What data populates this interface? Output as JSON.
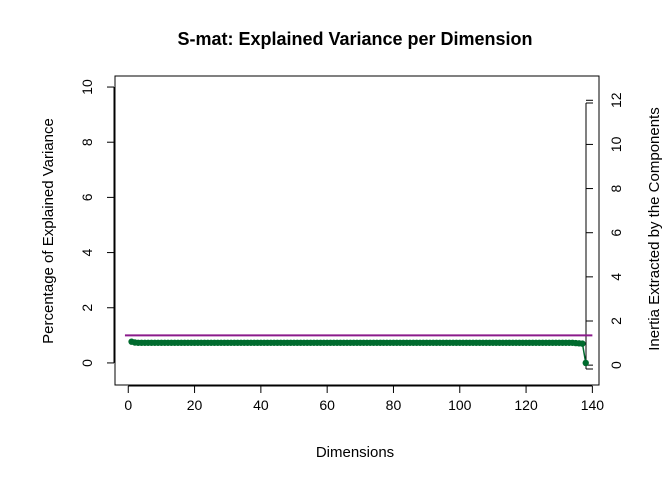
{
  "chart_data": {
    "type": "line",
    "title": "S-mat: Explained Variance per Dimension",
    "xlabel": "Dimensions",
    "ylabel": "Percentage of Explained Variance",
    "ylabel_right": "Inertia Extracted by the Components",
    "xlim": [
      -4,
      142
    ],
    "ylim": [
      -0.8,
      10.4
    ],
    "ylim_right": [
      -0.9,
      13.1
    ],
    "x_ticks": [
      "0",
      "20",
      "40",
      "60",
      "80",
      "120",
      "100",
      "140"
    ],
    "x_tick_values": [
      0,
      20,
      40,
      60,
      80,
      120,
      100,
      140
    ],
    "y_ticks": [
      "0",
      "2",
      "4",
      "6",
      "8",
      "10"
    ],
    "y_tick_values": [
      0,
      2,
      4,
      6,
      8,
      10
    ],
    "y_right_ticks": [
      "0",
      "2",
      "4",
      "6",
      "8",
      "10",
      "12"
    ],
    "y_right_tick_values": [
      0,
      2,
      4,
      6,
      8,
      10,
      12
    ],
    "reference_line": {
      "y": 1.0,
      "color": "#8b1a8b"
    },
    "line_color": "#006b2e",
    "grid": false,
    "series": [
      {
        "values": [
          0.77,
          0.74,
          0.73,
          0.73,
          0.73,
          0.73,
          0.73,
          0.73,
          0.73,
          0.73,
          0.73,
          0.73,
          0.73,
          0.73,
          0.73,
          0.73,
          0.73,
          0.73,
          0.73,
          0.73,
          0.73,
          0.73,
          0.73,
          0.73,
          0.73,
          0.73,
          0.73,
          0.73,
          0.73,
          0.73,
          0.73,
          0.73,
          0.73,
          0.73,
          0.73,
          0.73,
          0.73,
          0.73,
          0.73,
          0.73,
          0.73,
          0.73,
          0.73,
          0.73,
          0.73,
          0.73,
          0.73,
          0.73,
          0.73,
          0.73,
          0.73,
          0.73,
          0.73,
          0.73,
          0.73,
          0.73,
          0.73,
          0.73,
          0.73,
          0.73,
          0.73,
          0.73,
          0.73,
          0.73,
          0.73,
          0.73,
          0.73,
          0.73,
          0.73,
          0.73,
          0.73,
          0.73,
          0.73,
          0.73,
          0.73,
          0.73,
          0.73,
          0.73,
          0.73,
          0.73,
          0.73,
          0.73,
          0.73,
          0.73,
          0.73,
          0.73,
          0.73,
          0.73,
          0.73,
          0.73,
          0.73,
          0.73,
          0.73,
          0.73,
          0.73,
          0.73,
          0.73,
          0.73,
          0.73,
          0.73,
          0.73,
          0.73,
          0.73,
          0.73,
          0.73,
          0.73,
          0.73,
          0.73,
          0.73,
          0.73,
          0.73,
          0.73,
          0.73,
          0.73,
          0.73,
          0.73,
          0.73,
          0.73,
          0.73,
          0.73,
          0.73,
          0.73,
          0.73,
          0.73,
          0.73,
          0.73,
          0.73,
          0.73,
          0.73,
          0.73,
          0.73,
          0.73,
          0.73,
          0.73,
          0.72,
          0.71,
          0.7,
          0.0
        ]
      }
    ]
  }
}
